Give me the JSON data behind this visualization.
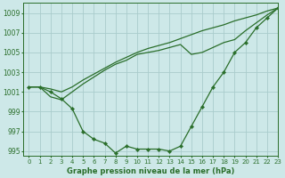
{
  "xlabel": "Graphe pression niveau de la mer (hPa)",
  "background_color": "#cde8e8",
  "grid_color": "#aacccc",
  "line_color": "#2a6e2a",
  "xlim": [
    -0.5,
    23
  ],
  "ylim": [
    994.5,
    1010.0
  ],
  "yticks": [
    995,
    997,
    999,
    1001,
    1003,
    1005,
    1007,
    1009
  ],
  "xticks": [
    0,
    1,
    2,
    3,
    4,
    5,
    6,
    7,
    8,
    9,
    10,
    11,
    12,
    13,
    14,
    15,
    16,
    17,
    18,
    19,
    20,
    21,
    22,
    23
  ],
  "series_straight": [
    1001.5,
    1001.5,
    1001.3,
    1001.0,
    1001.5,
    1002.2,
    1002.8,
    1003.4,
    1004.0,
    1004.5,
    1005.0,
    1005.4,
    1005.7,
    1006.0,
    1006.4,
    1006.8,
    1007.2,
    1007.5,
    1007.8,
    1008.2,
    1008.5,
    1008.8,
    1009.2,
    1009.5
  ],
  "series_mid": [
    1001.5,
    1001.5,
    1000.5,
    1000.2,
    1001.0,
    1001.8,
    1002.5,
    1003.2,
    1003.8,
    1004.2,
    1004.8,
    1005.0,
    1005.2,
    1005.5,
    1005.8,
    1004.8,
    1005.0,
    1005.5,
    1006.0,
    1006.3,
    1007.2,
    1008.0,
    1008.8,
    1009.5
  ],
  "series_deep": [
    1001.5,
    1001.5,
    1001.0,
    1000.3,
    999.3,
    997.0,
    996.2,
    995.8,
    994.8,
    995.5,
    995.2,
    995.2,
    995.2,
    995.0,
    995.5,
    997.5,
    999.5,
    1001.5,
    1003.0,
    1005.0,
    1006.0,
    1007.5,
    1008.5,
    1009.5
  ]
}
